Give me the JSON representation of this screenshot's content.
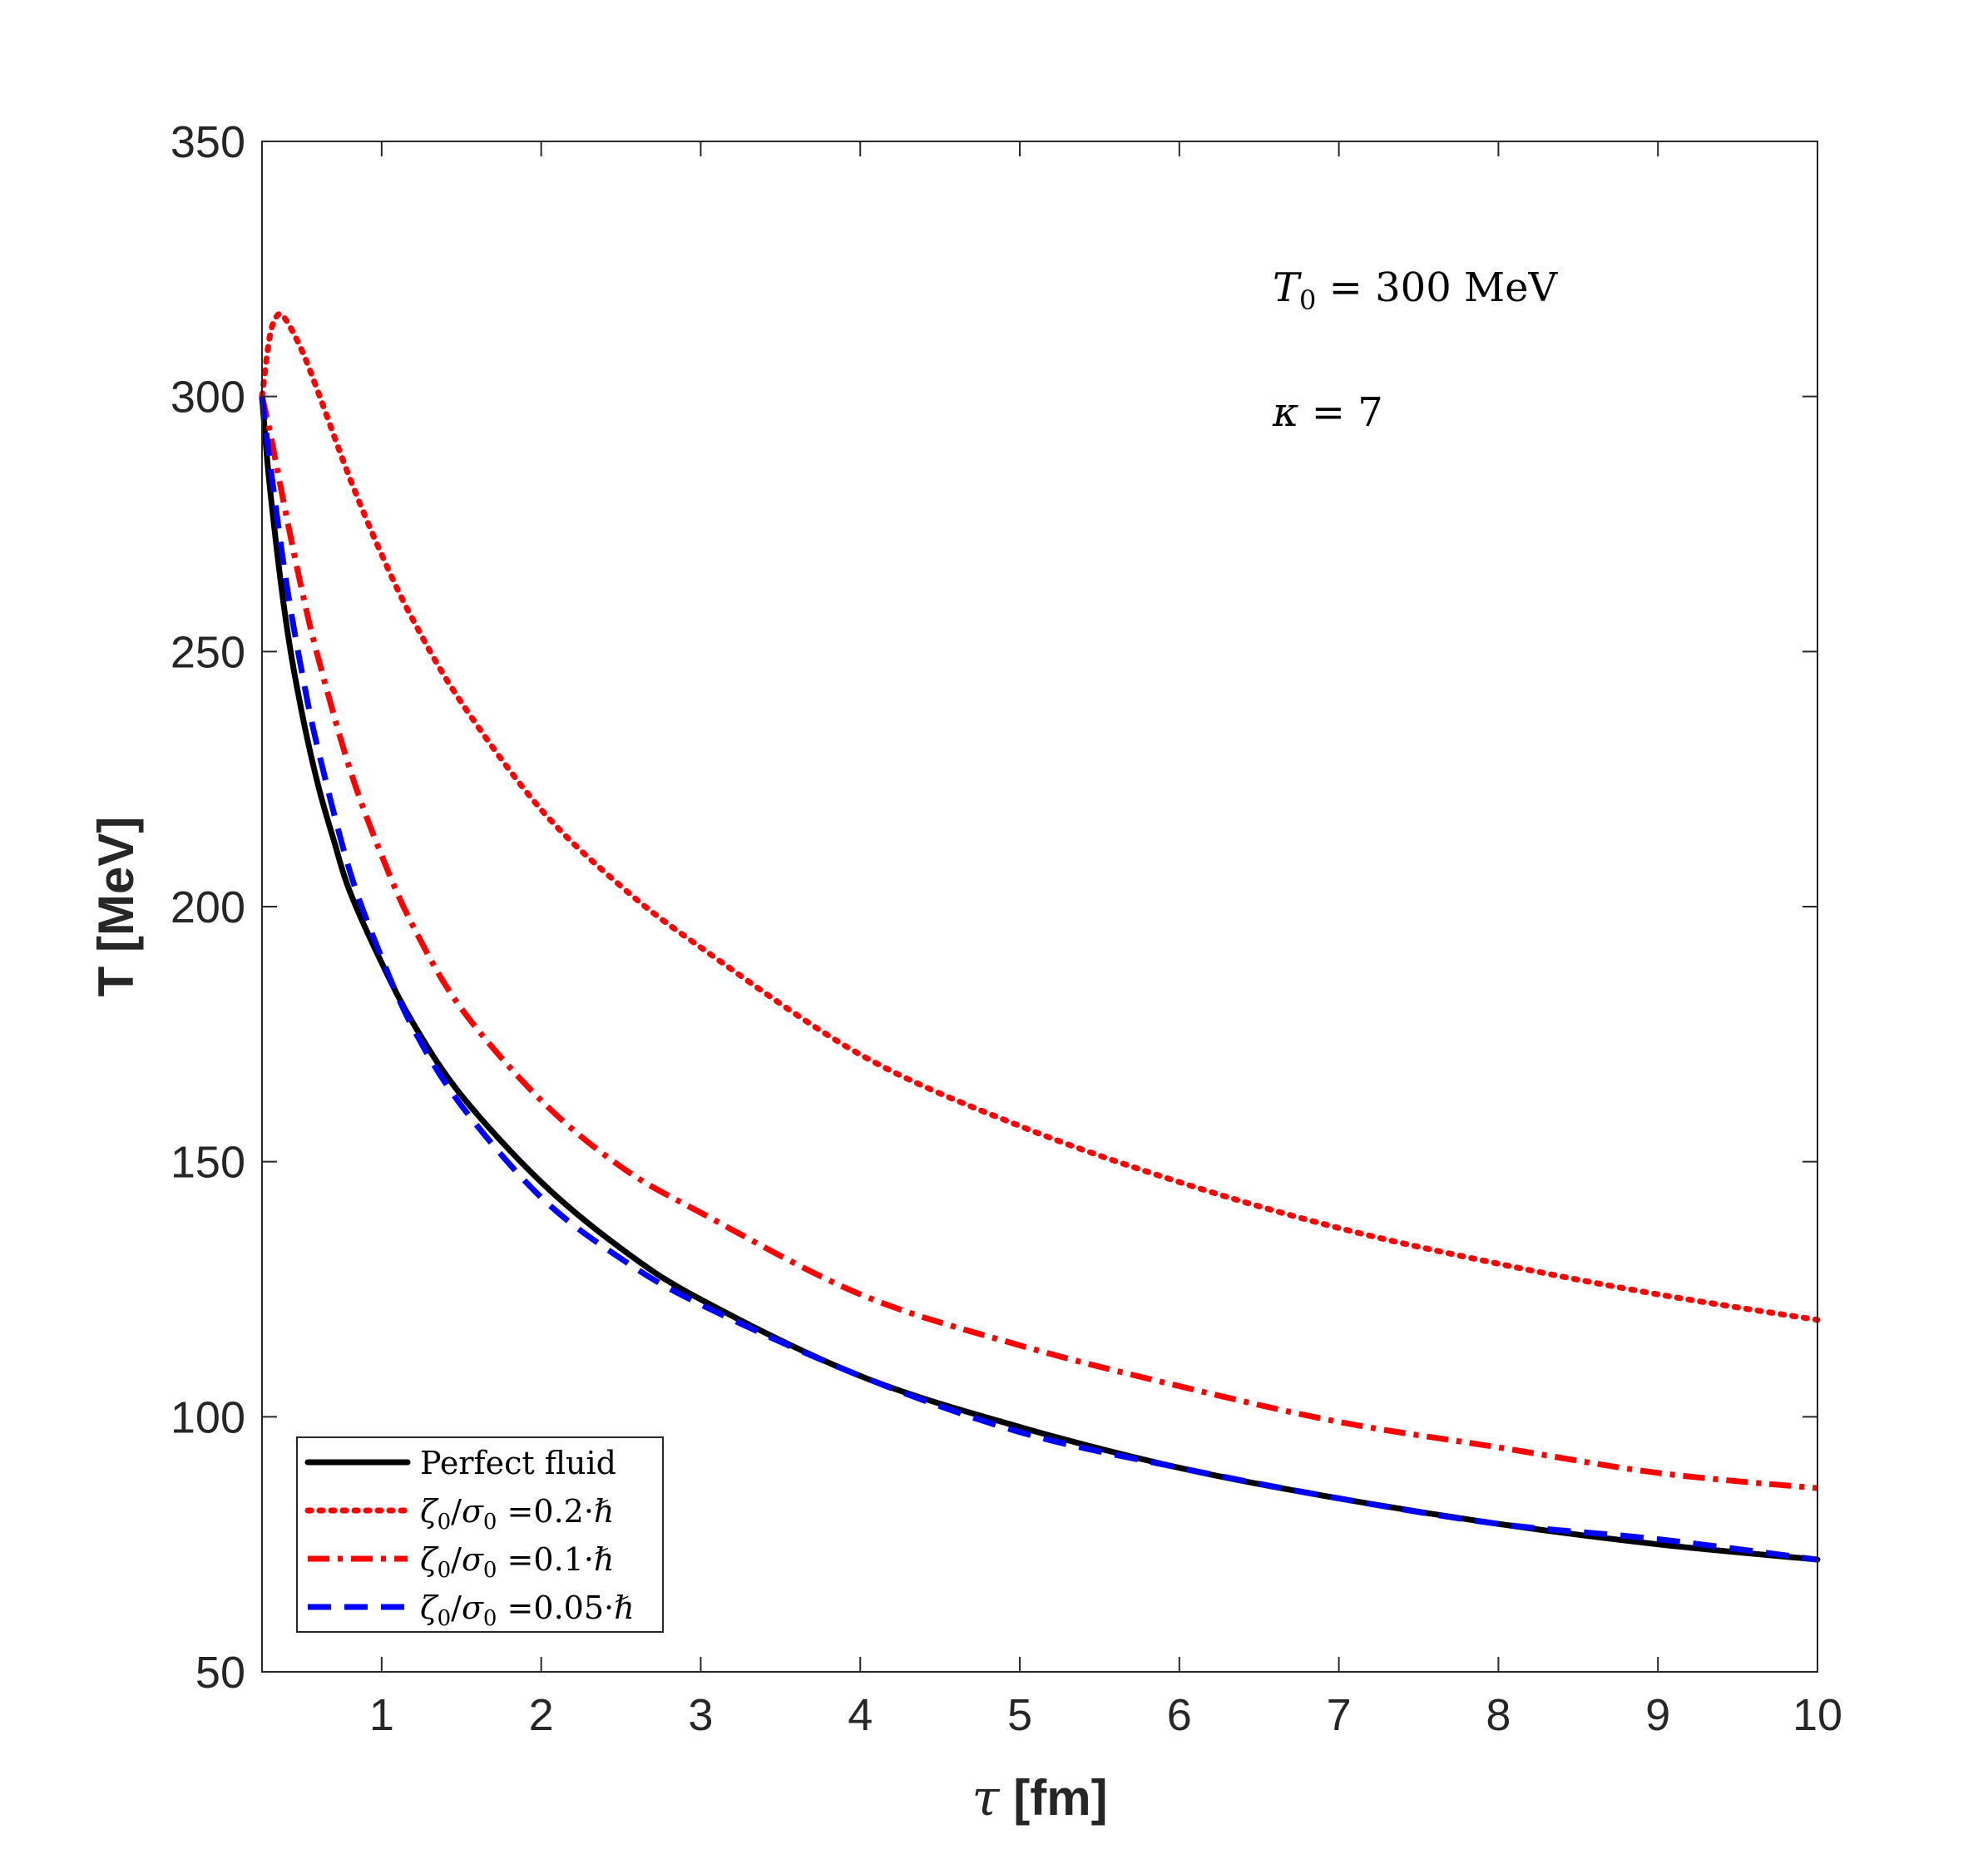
{
  "chart_data": {
    "type": "line",
    "xlabel_symbol": "τ",
    "xlabel_unit": "[fm]",
    "ylabel": "T [MeV]",
    "xlim": [
      0.25,
      10
    ],
    "ylim": [
      50,
      350
    ],
    "xticks": [
      1,
      2,
      3,
      4,
      5,
      6,
      7,
      8,
      9,
      10
    ],
    "yticks": [
      50,
      100,
      150,
      200,
      250,
      300,
      350
    ],
    "annotations": [
      {
        "label": "T0",
        "main": "T",
        "sub": "0",
        "rest": " = 300 MeV"
      },
      {
        "label": "kappa",
        "main": "κ",
        "rest": " = 7"
      }
    ],
    "series": [
      {
        "name": "Perfect fluid",
        "color": "#000000",
        "dash": "solid",
        "x": [
          0.25,
          0.3,
          0.4,
          0.5,
          0.6,
          0.7,
          0.8,
          1.0,
          1.2,
          1.5,
          2.0,
          2.5,
          3.0,
          4.0,
          5.0,
          6.0,
          7.0,
          8.0,
          9.0,
          10.0
        ],
        "y": [
          300,
          282,
          256,
          238,
          224,
          213,
          203,
          189,
          177,
          163,
          146,
          133,
          123,
          108,
          98,
          90,
          84,
          79,
          75,
          72
        ]
      },
      {
        "name": "ζ0/σ0 =0.2·ℏ",
        "color": "#ff0000",
        "dash": "dotted",
        "x": [
          0.25,
          0.3,
          0.35,
          0.4,
          0.5,
          0.6,
          0.8,
          1.0,
          1.2,
          1.5,
          2.0,
          2.5,
          3.0,
          4.0,
          5.0,
          6.0,
          7.0,
          8.0,
          9.0,
          10.0
        ],
        "y": [
          300,
          312,
          316,
          315,
          309,
          301,
          284,
          269,
          256,
          240,
          219,
          204,
          192,
          171,
          157,
          146,
          137,
          130,
          124,
          119
        ]
      },
      {
        "name": "ζ0/σ0 =0.1·ℏ",
        "color": "#ff0000",
        "dash": "dashdot",
        "x": [
          0.25,
          0.3,
          0.4,
          0.5,
          0.6,
          0.8,
          1.0,
          1.2,
          1.5,
          2.0,
          2.5,
          3.0,
          4.0,
          5.0,
          6.0,
          7.0,
          8.0,
          9.0,
          10.0
        ],
        "y": [
          300,
          293,
          277,
          262,
          249,
          227,
          210,
          196,
          180,
          162,
          149,
          140,
          124,
          114,
          106,
          99,
          94,
          89,
          86
        ]
      },
      {
        "name": "ζ0/σ0 =0.05·ℏ",
        "color": "#0000ff",
        "dash": "dashed",
        "x": [
          0.25,
          0.3,
          0.4,
          0.5,
          0.6,
          0.8,
          1.0,
          1.2,
          1.5,
          2.0,
          2.5,
          3.0,
          4.0,
          5.0,
          6.0,
          7.0,
          8.0,
          9.0,
          10.0
        ],
        "y": [
          300,
          287,
          264,
          246,
          231,
          207,
          190,
          176,
          161,
          143,
          131,
          122,
          108,
          97,
          90,
          84,
          79,
          76,
          72
        ]
      }
    ],
    "legend": {
      "location": "bottom-left",
      "entries": [
        {
          "text": "Perfect fluid"
        },
        {
          "symbol": "ζ",
          "sub": "0",
          "slash": "/",
          "symbol2": "σ",
          "sub2": "0",
          "value": " =0.2·",
          "hbar": "ℏ"
        },
        {
          "symbol": "ζ",
          "sub": "0",
          "slash": "/",
          "symbol2": "σ",
          "sub2": "0",
          "value": " =0.1·",
          "hbar": "ℏ"
        },
        {
          "symbol": "ζ",
          "sub": "0",
          "slash": "/",
          "symbol2": "σ",
          "sub2": "0",
          "value": " =0.05·",
          "hbar": "ℏ"
        }
      ]
    }
  }
}
